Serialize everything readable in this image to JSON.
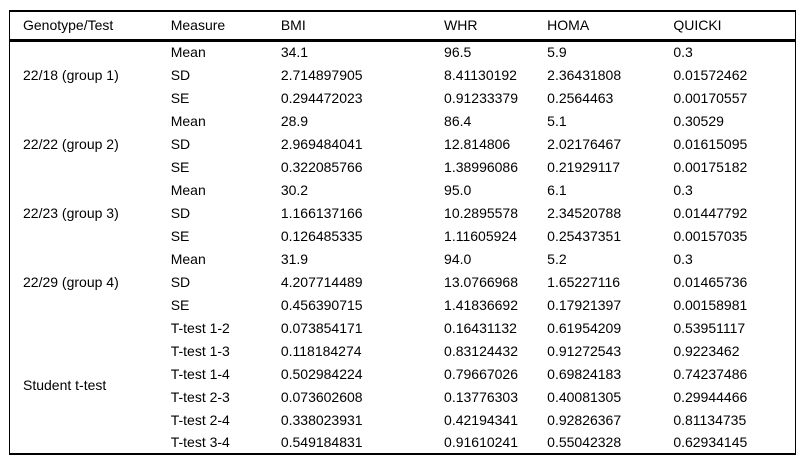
{
  "table": {
    "columns": [
      "Genotype/Test",
      "Measure",
      "BMI",
      "WHR",
      "HOMA",
      "QUICKI"
    ],
    "groups": [
      {
        "label": "22/18 (group 1)",
        "rows": [
          {
            "measure": "Mean",
            "values": [
              "34.1",
              "96.5",
              "5.9",
              "0.3"
            ]
          },
          {
            "measure": "SD",
            "values": [
              "2.714897905",
              "8.41130192",
              "2.36431808",
              "0.01572462"
            ]
          },
          {
            "measure": "SE",
            "values": [
              "0.294472023",
              "0.91233379",
              "0.2564463",
              "0.00170557"
            ]
          }
        ]
      },
      {
        "label": "22/22 (group 2)",
        "rows": [
          {
            "measure": "Mean",
            "values": [
              "28.9",
              "86.4",
              "5.1",
              "0.30529"
            ]
          },
          {
            "measure": "SD",
            "values": [
              "2.969484041",
              "12.814806",
              "2.02176467",
              "0.01615095"
            ]
          },
          {
            "measure": "SE",
            "values": [
              "0.322085766",
              "1.38996086",
              "0.21929117",
              "0.00175182"
            ]
          }
        ]
      },
      {
        "label": "22/23 (group 3)",
        "rows": [
          {
            "measure": "Mean",
            "values": [
              "30.2",
              "95.0",
              "6.1",
              "0.3"
            ]
          },
          {
            "measure": "SD",
            "values": [
              "1.166137166",
              "10.2895578",
              "2.34520788",
              "0.01447792"
            ]
          },
          {
            "measure": "SE",
            "values": [
              "0.126485335",
              "1.11605924",
              "0.25437351",
              "0.00157035"
            ]
          }
        ]
      },
      {
        "label": "22/29 (group 4)",
        "rows": [
          {
            "measure": "Mean",
            "values": [
              "31.9",
              "94.0",
              "5.2",
              "0.3"
            ]
          },
          {
            "measure": "SD",
            "values": [
              "4.207714489",
              "13.0766968",
              "1.65227116",
              "0.01465736"
            ]
          },
          {
            "measure": "SE",
            "values": [
              "0.456390715",
              "1.41836692",
              "0.17921397",
              "0.00158981"
            ]
          }
        ]
      },
      {
        "label": "Student t-test",
        "rows": [
          {
            "measure": "T-test 1-2",
            "values": [
              "0.073854171",
              "0.16431132",
              "0.61954209",
              "0.53951117"
            ]
          },
          {
            "measure": "T-test 1-3",
            "values": [
              "0.118184274",
              "0.83124432",
              "0.91272543",
              "0.9223462"
            ]
          },
          {
            "measure": "T-test 1-4",
            "values": [
              "0.502984224",
              "0.79667026",
              "0.69824183",
              "0.74237486"
            ]
          },
          {
            "measure": "T-test 2-3",
            "values": [
              "0.073602608",
              "0.13776303",
              "0.40081305",
              "0.29944466"
            ]
          },
          {
            "measure": "T-test 2-4",
            "values": [
              "0.338023931",
              "0.42194341",
              "0.92826367",
              "0.81134735"
            ]
          },
          {
            "measure": "T-test 3-4",
            "values": [
              "0.549184831",
              "0.91610241",
              "0.55042328",
              "0.62934145"
            ]
          }
        ]
      }
    ]
  }
}
